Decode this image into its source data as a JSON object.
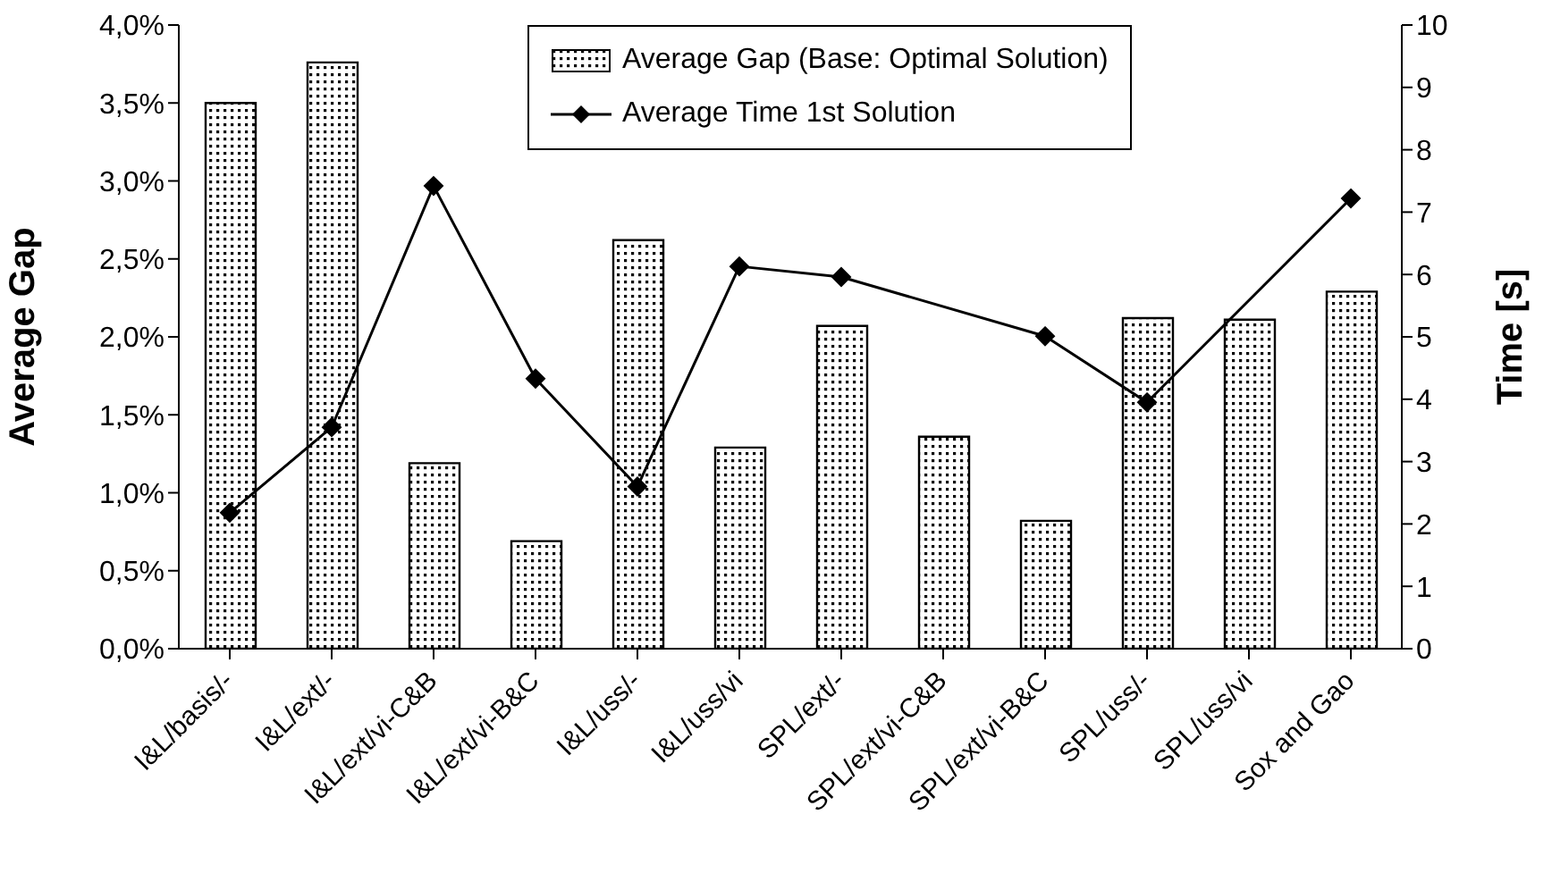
{
  "chart_data": {
    "type": "bar",
    "ylabel": "Average Gap",
    "y2label": "Time [s]",
    "categories": [
      "I&L/basis/-",
      "I&L/ext/-",
      "I&L/ext/vi-C&B",
      "I&L/ext/vi-B&C",
      "I&L/uss/-",
      "I&L/uss/vi",
      "SPL/ext/-",
      "SPL/ext/vi-C&B",
      "SPL/ext/vi-B&C",
      "SPL/uss/-",
      "SPL/uss/vi",
      "Sox and Gao"
    ],
    "series": [
      {
        "name": "Average Gap (Base: Optimal Solution)",
        "color": "#000000",
        "values": [
          3.5,
          3.76,
          1.19,
          0.69,
          2.62,
          1.29,
          2.07,
          1.36,
          0.82,
          2.12,
          2.11,
          2.29
        ]
      },
      {
        "name": "Average Time 1st Solution",
        "type": "line",
        "axis": "y2",
        "color": "#000000",
        "marker": "diamond",
        "values": [
          2.18,
          3.55,
          7.42,
          4.33,
          2.6,
          6.13,
          5.96,
          null,
          5.01,
          3.95,
          null,
          7.22
        ]
      }
    ],
    "ylim": [
      0,
      4
    ],
    "yticks": [
      {
        "value": 0,
        "label": "0,0%"
      },
      {
        "value": 0.5,
        "label": "0,5%"
      },
      {
        "value": 1,
        "label": "1,0%"
      },
      {
        "value": 1.5,
        "label": "1,5%"
      },
      {
        "value": 2,
        "label": "2,0%"
      },
      {
        "value": 2.5,
        "label": "2,5%"
      },
      {
        "value": 3,
        "label": "3,0%"
      },
      {
        "value": 3.5,
        "label": "3,5%"
      },
      {
        "value": 4,
        "label": "4,0%"
      }
    ],
    "y2lim": [
      0,
      10
    ],
    "y2ticks": [
      0,
      1,
      2,
      3,
      4,
      5,
      6,
      7,
      8,
      9,
      10
    ],
    "grid": false,
    "legend": "top right"
  }
}
